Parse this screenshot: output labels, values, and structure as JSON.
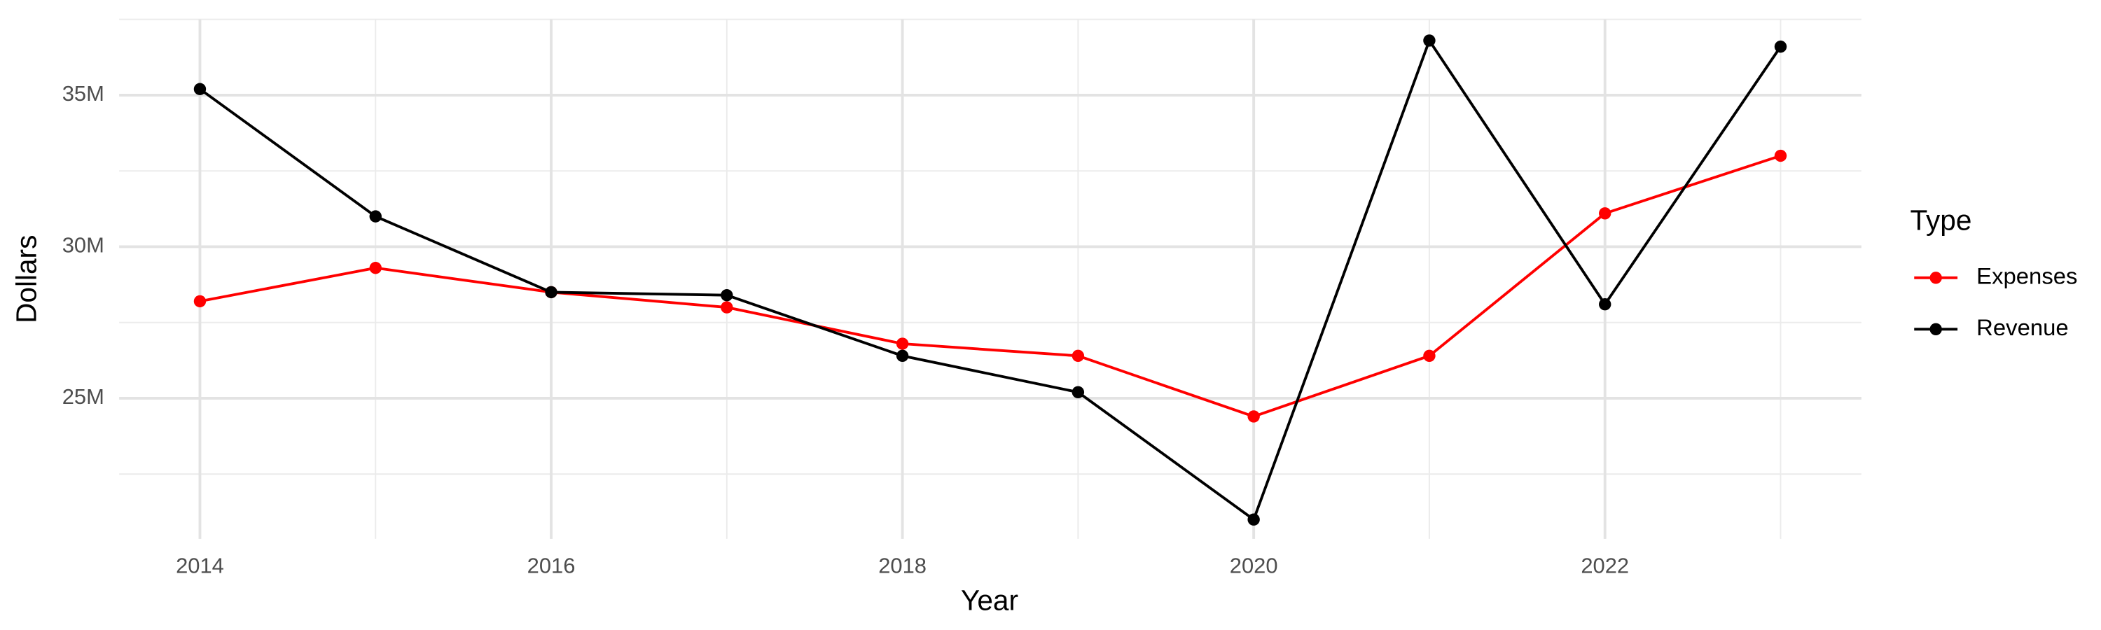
{
  "chart_data": {
    "type": "line",
    "x_label": "Year",
    "y_label": "Dollars",
    "legend_title": "Type",
    "legend_position": "right",
    "grid": true,
    "x": [
      2014,
      2015,
      2016,
      2017,
      2018,
      2019,
      2020,
      2021,
      2022,
      2023
    ],
    "series": [
      {
        "name": "Expenses",
        "color": "#ff0000",
        "values": [
          28200000,
          29300000,
          28500000,
          28000000,
          26800000,
          26400000,
          24400000,
          26400000,
          31100000,
          33000000
        ]
      },
      {
        "name": "Revenue",
        "color": "#000000",
        "values": [
          35200000,
          31000000,
          28500000,
          28400000,
          26400000,
          25200000,
          21000000,
          36800000,
          28100000,
          36600000
        ]
      }
    ],
    "xlim": [
      2013.54,
      2023.46
    ],
    "xticks": [
      2014,
      2016,
      2018,
      2020,
      2022
    ],
    "ylim": [
      20360000,
      37500000
    ],
    "yticks": [
      {
        "value": 25000000,
        "label": "25M"
      },
      {
        "value": 30000000,
        "label": "30M"
      },
      {
        "value": 35000000,
        "label": "35M"
      }
    ]
  }
}
